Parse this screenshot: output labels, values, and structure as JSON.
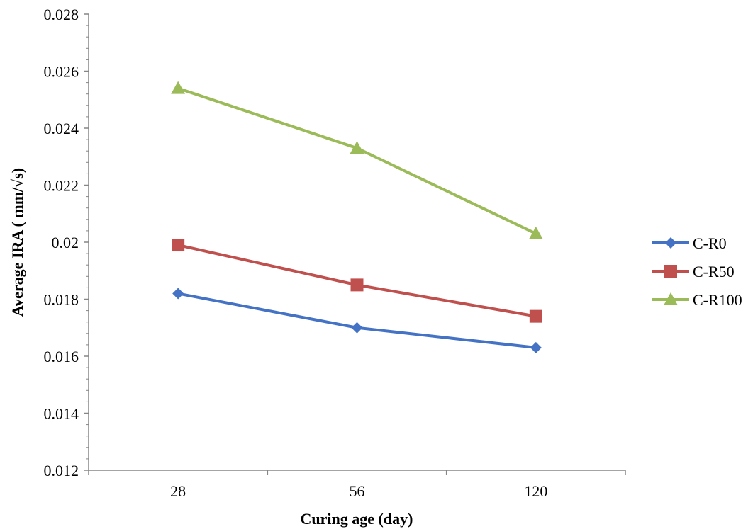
{
  "chart_data": {
    "type": "line",
    "title": "",
    "xlabel": "Curing  age (day)",
    "ylabel": "Average IRA ( mm/√s)",
    "categories": [
      "28",
      "56",
      "120"
    ],
    "ylim": [
      0.012,
      0.028
    ],
    "y_major_step": 0.002,
    "y_ticks": [
      "0.012",
      "0.014",
      "0.016",
      "0.018",
      "0.02",
      "0.022",
      "0.024",
      "0.026",
      "0.028"
    ],
    "grid": false,
    "legend_position": "right",
    "series": [
      {
        "name": "C-R0",
        "color": "#4472c4",
        "marker": "diamond",
        "values": [
          0.0182,
          0.017,
          0.0163
        ]
      },
      {
        "name": "C-R50",
        "color": "#c0504d",
        "marker": "square",
        "values": [
          0.0199,
          0.0185,
          0.0174
        ]
      },
      {
        "name": "C-R100",
        "color": "#9bbb59",
        "marker": "triangle",
        "values": [
          0.0254,
          0.0233,
          0.0203
        ]
      }
    ]
  }
}
